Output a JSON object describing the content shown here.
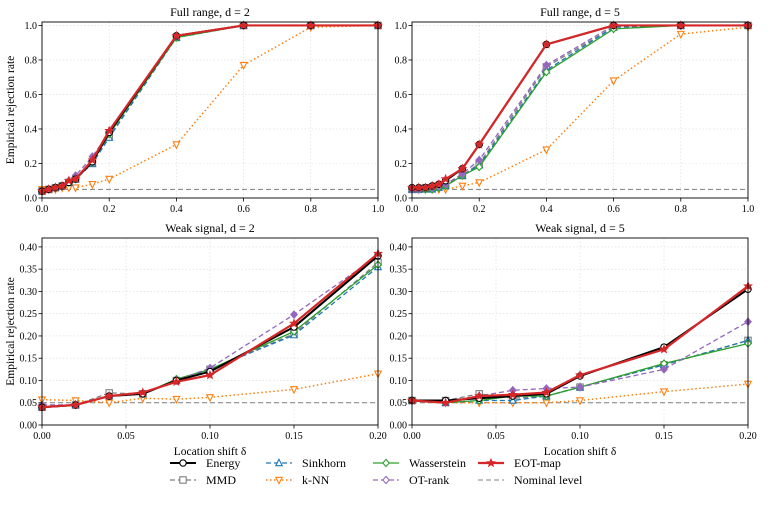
{
  "colors": {
    "Energy": "#000000",
    "MMD": "#7f7f7f",
    "Sinkhorn": "#1f77b4",
    "k-NN": "#ff7f0e",
    "Wasserstein": "#2ca02c",
    "OT-rank": "#9467bd",
    "EOT-map": "#d62728",
    "Nominal level": "#7f7f7f"
  },
  "legend": {
    "placement": "bottom-center",
    "entries": [
      {
        "name": "Energy",
        "marker": "circle",
        "dash": "solid",
        "width": 2.0
      },
      {
        "name": "MMD",
        "marker": "square",
        "dash": "dashed",
        "width": 1.3
      },
      {
        "name": "Sinkhorn",
        "marker": "triangle-up",
        "dash": "dashed",
        "width": 1.3
      },
      {
        "name": "k-NN",
        "marker": "triangle-down",
        "dash": "dotted",
        "width": 1.5
      },
      {
        "name": "Wasserstein",
        "marker": "diamond",
        "dash": "solid",
        "width": 1.3
      },
      {
        "name": "OT-rank",
        "marker": "diamond",
        "dash": "dashed",
        "width": 1.3
      },
      {
        "name": "EOT-map",
        "marker": "star",
        "dash": "solid",
        "width": 2.2
      },
      {
        "name": "Nominal level",
        "marker": "none",
        "dash": "dashed",
        "width": 1.0
      }
    ]
  },
  "chart_data": [
    {
      "type": "line",
      "title": "Full range, d = 2",
      "xlabel": "",
      "ylabel": "Empirical rejection rate",
      "xlim": [
        0,
        1.0
      ],
      "ylim": [
        0,
        1.02
      ],
      "xticks": [
        "0.0",
        "0.2",
        "0.4",
        "0.6",
        "0.8",
        "1.0"
      ],
      "yticks": [
        "0.0",
        "0.2",
        "0.4",
        "0.6",
        "0.8",
        "1.0"
      ],
      "grid": true,
      "nominal_level": 0.05,
      "x": [
        0.0,
        0.02,
        0.04,
        0.06,
        0.08,
        0.1,
        0.15,
        0.2,
        0.4,
        0.6,
        0.8,
        1.0
      ],
      "series": [
        {
          "name": "Energy",
          "values": [
            0.04,
            0.05,
            0.06,
            0.07,
            0.09,
            0.11,
            0.21,
            0.38,
            0.94,
            1.0,
            1.0,
            1.0
          ]
        },
        {
          "name": "MMD",
          "values": [
            0.04,
            0.05,
            0.06,
            0.07,
            0.09,
            0.11,
            0.2,
            0.36,
            0.93,
            1.0,
            1.0,
            1.0
          ]
        },
        {
          "name": "Sinkhorn",
          "values": [
            0.04,
            0.05,
            0.06,
            0.07,
            0.09,
            0.11,
            0.2,
            0.35,
            0.93,
            1.0,
            1.0,
            1.0
          ]
        },
        {
          "name": "k-NN",
          "values": [
            0.05,
            0.05,
            0.05,
            0.06,
            0.06,
            0.06,
            0.08,
            0.11,
            0.31,
            0.77,
            0.99,
            1.0
          ]
        },
        {
          "name": "Wasserstein",
          "values": [
            0.04,
            0.05,
            0.06,
            0.07,
            0.09,
            0.11,
            0.21,
            0.37,
            0.93,
            1.0,
            1.0,
            1.0
          ]
        },
        {
          "name": "OT-rank",
          "values": [
            0.04,
            0.05,
            0.06,
            0.07,
            0.1,
            0.13,
            0.24,
            0.38,
            0.94,
            1.0,
            1.0,
            1.0
          ]
        },
        {
          "name": "EOT-map",
          "values": [
            0.04,
            0.05,
            0.06,
            0.07,
            0.1,
            0.11,
            0.22,
            0.39,
            0.94,
            1.0,
            1.0,
            1.0
          ]
        }
      ]
    },
    {
      "type": "line",
      "title": "Full range, d = 5",
      "xlabel": "",
      "ylabel": "",
      "xlim": [
        0,
        1.0
      ],
      "ylim": [
        0,
        1.02
      ],
      "xticks": [
        "0.0",
        "0.2",
        "0.4",
        "0.6",
        "0.8",
        "1.0"
      ],
      "yticks": [
        "0.0",
        "0.2",
        "0.4",
        "0.6",
        "0.8",
        "1.0"
      ],
      "grid": true,
      "nominal_level": 0.05,
      "x": [
        0.0,
        0.02,
        0.04,
        0.06,
        0.08,
        0.1,
        0.15,
        0.2,
        0.4,
        0.6,
        0.8,
        1.0
      ],
      "series": [
        {
          "name": "Energy",
          "values": [
            0.06,
            0.06,
            0.06,
            0.07,
            0.08,
            0.1,
            0.17,
            0.31,
            0.89,
            1.0,
            1.0,
            1.0
          ]
        },
        {
          "name": "MMD",
          "values": [
            0.05,
            0.05,
            0.06,
            0.06,
            0.07,
            0.08,
            0.13,
            0.2,
            0.76,
            0.99,
            1.0,
            1.0
          ]
        },
        {
          "name": "Sinkhorn",
          "values": [
            0.05,
            0.05,
            0.05,
            0.05,
            0.06,
            0.07,
            0.13,
            0.19,
            0.74,
            0.99,
            1.0,
            1.0
          ]
        },
        {
          "name": "k-NN",
          "values": [
            0.05,
            0.05,
            0.05,
            0.05,
            0.05,
            0.05,
            0.07,
            0.09,
            0.28,
            0.68,
            0.95,
            0.99
          ]
        },
        {
          "name": "Wasserstein",
          "values": [
            0.05,
            0.05,
            0.05,
            0.05,
            0.06,
            0.07,
            0.13,
            0.18,
            0.73,
            0.98,
            1.0,
            1.0
          ]
        },
        {
          "name": "OT-rank",
          "values": [
            0.05,
            0.05,
            0.06,
            0.06,
            0.07,
            0.08,
            0.14,
            0.22,
            0.77,
            1.0,
            1.0,
            1.0
          ]
        },
        {
          "name": "EOT-map",
          "values": [
            0.06,
            0.06,
            0.06,
            0.07,
            0.08,
            0.11,
            0.17,
            0.31,
            0.89,
            1.0,
            1.0,
            1.0
          ]
        }
      ]
    },
    {
      "type": "line",
      "title": "Weak signal, d = 2",
      "xlabel": "Location shift δ",
      "ylabel": "Empirical rejection rate",
      "xlim": [
        0,
        0.2
      ],
      "ylim": [
        0,
        0.42
      ],
      "xticks": [
        "0.00",
        "0.05",
        "0.10",
        "0.15",
        "0.20"
      ],
      "yticks": [
        "0.00",
        "0.05",
        "0.10",
        "0.15",
        "0.20",
        "0.25",
        "0.30",
        "0.35",
        "0.40"
      ],
      "grid": true,
      "nominal_level": 0.05,
      "x": [
        0.0,
        0.02,
        0.04,
        0.06,
        0.08,
        0.1,
        0.15,
        0.2
      ],
      "series": [
        {
          "name": "Energy",
          "values": [
            0.04,
            0.045,
            0.065,
            0.07,
            0.1,
            0.12,
            0.22,
            0.38
          ]
        },
        {
          "name": "MMD",
          "values": [
            0.04,
            0.045,
            0.072,
            0.07,
            0.1,
            0.125,
            0.205,
            0.365
          ]
        },
        {
          "name": "Sinkhorn",
          "values": [
            0.04,
            0.045,
            0.065,
            0.07,
            0.1,
            0.125,
            0.202,
            0.355
          ]
        },
        {
          "name": "k-NN",
          "values": [
            0.057,
            0.055,
            0.05,
            0.06,
            0.058,
            0.062,
            0.08,
            0.115
          ]
        },
        {
          "name": "Wasserstein",
          "values": [
            0.04,
            0.045,
            0.065,
            0.07,
            0.103,
            0.125,
            0.21,
            0.36
          ]
        },
        {
          "name": "OT-rank",
          "values": [
            0.045,
            0.045,
            0.065,
            0.07,
            0.1,
            0.128,
            0.248,
            0.38
          ]
        },
        {
          "name": "EOT-map",
          "values": [
            0.04,
            0.045,
            0.065,
            0.073,
            0.097,
            0.112,
            0.228,
            0.385
          ]
        }
      ]
    },
    {
      "type": "line",
      "title": "Weak signal, d = 5",
      "xlabel": "Location shift δ",
      "ylabel": "",
      "xlim": [
        0,
        0.2
      ],
      "ylim": [
        0,
        0.42
      ],
      "xticks": [
        "0.00",
        "0.05",
        "0.10",
        "0.15",
        "0.20"
      ],
      "yticks": [
        "0.00",
        "0.05",
        "0.10",
        "0.15",
        "0.20",
        "0.25",
        "0.30",
        "0.35",
        "0.40"
      ],
      "grid": true,
      "nominal_level": 0.05,
      "x": [
        0.0,
        0.02,
        0.04,
        0.06,
        0.08,
        0.1,
        0.15,
        0.2
      ],
      "series": [
        {
          "name": "Energy",
          "values": [
            0.055,
            0.055,
            0.06,
            0.065,
            0.07,
            0.11,
            0.175,
            0.305
          ]
        },
        {
          "name": "MMD",
          "values": [
            0.055,
            0.055,
            0.07,
            0.06,
            0.065,
            0.085,
            0.135,
            0.19
          ]
        },
        {
          "name": "Sinkhorn",
          "values": [
            0.055,
            0.05,
            0.055,
            0.055,
            0.065,
            0.085,
            0.135,
            0.19
          ]
        },
        {
          "name": "k-NN",
          "values": [
            0.055,
            0.05,
            0.05,
            0.05,
            0.05,
            0.055,
            0.075,
            0.092
          ]
        },
        {
          "name": "Wasserstein",
          "values": [
            0.055,
            0.05,
            0.055,
            0.065,
            0.065,
            0.085,
            0.138,
            0.183
          ]
        },
        {
          "name": "OT-rank",
          "values": [
            0.055,
            0.05,
            0.065,
            0.078,
            0.082,
            0.085,
            0.125,
            0.232
          ]
        },
        {
          "name": "EOT-map",
          "values": [
            0.055,
            0.05,
            0.065,
            0.068,
            0.073,
            0.112,
            0.17,
            0.312
          ]
        }
      ]
    }
  ]
}
